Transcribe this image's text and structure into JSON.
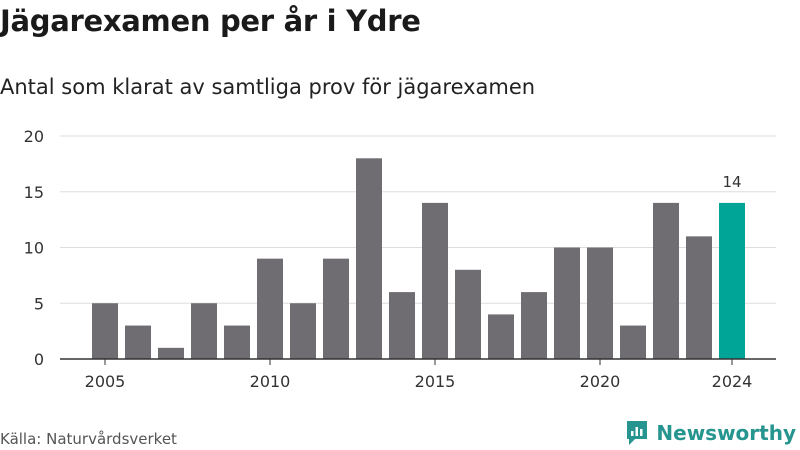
{
  "title": "Jägarexamen per år i Ydre",
  "subtitle": "Antal som klarat av samtliga prov för jägarexamen",
  "source": "Källa: Naturvårdsverket",
  "brand": {
    "name": "Newsworthy",
    "icon": "newsworthy-logo-icon",
    "color": "#26958f"
  },
  "colors": {
    "bar": "#6f6d72",
    "highlight": "#00a598",
    "grid": "#dddddd",
    "axis": "#333333",
    "text": "#333333"
  },
  "chart_data": {
    "type": "bar",
    "title": "Jägarexamen per år i Ydre",
    "subtitle": "Antal som klarat av samtliga prov för jägarexamen",
    "xlabel": "",
    "ylabel": "",
    "x": [
      2005,
      2006,
      2007,
      2008,
      2009,
      2010,
      2011,
      2012,
      2013,
      2014,
      2015,
      2016,
      2017,
      2018,
      2019,
      2020,
      2021,
      2022,
      2023,
      2024
    ],
    "values": [
      5,
      3,
      1,
      5,
      3,
      9,
      5,
      9,
      18,
      6,
      14,
      8,
      4,
      6,
      10,
      10,
      3,
      14,
      11,
      14
    ],
    "ylim": [
      0,
      20
    ],
    "yticks": [
      0,
      5,
      10,
      15,
      20
    ],
    "xticks": [
      2005,
      2010,
      2015,
      2020,
      2024
    ],
    "highlight": {
      "x": 2024,
      "label": "14"
    },
    "grid": true,
    "legend": "none"
  }
}
